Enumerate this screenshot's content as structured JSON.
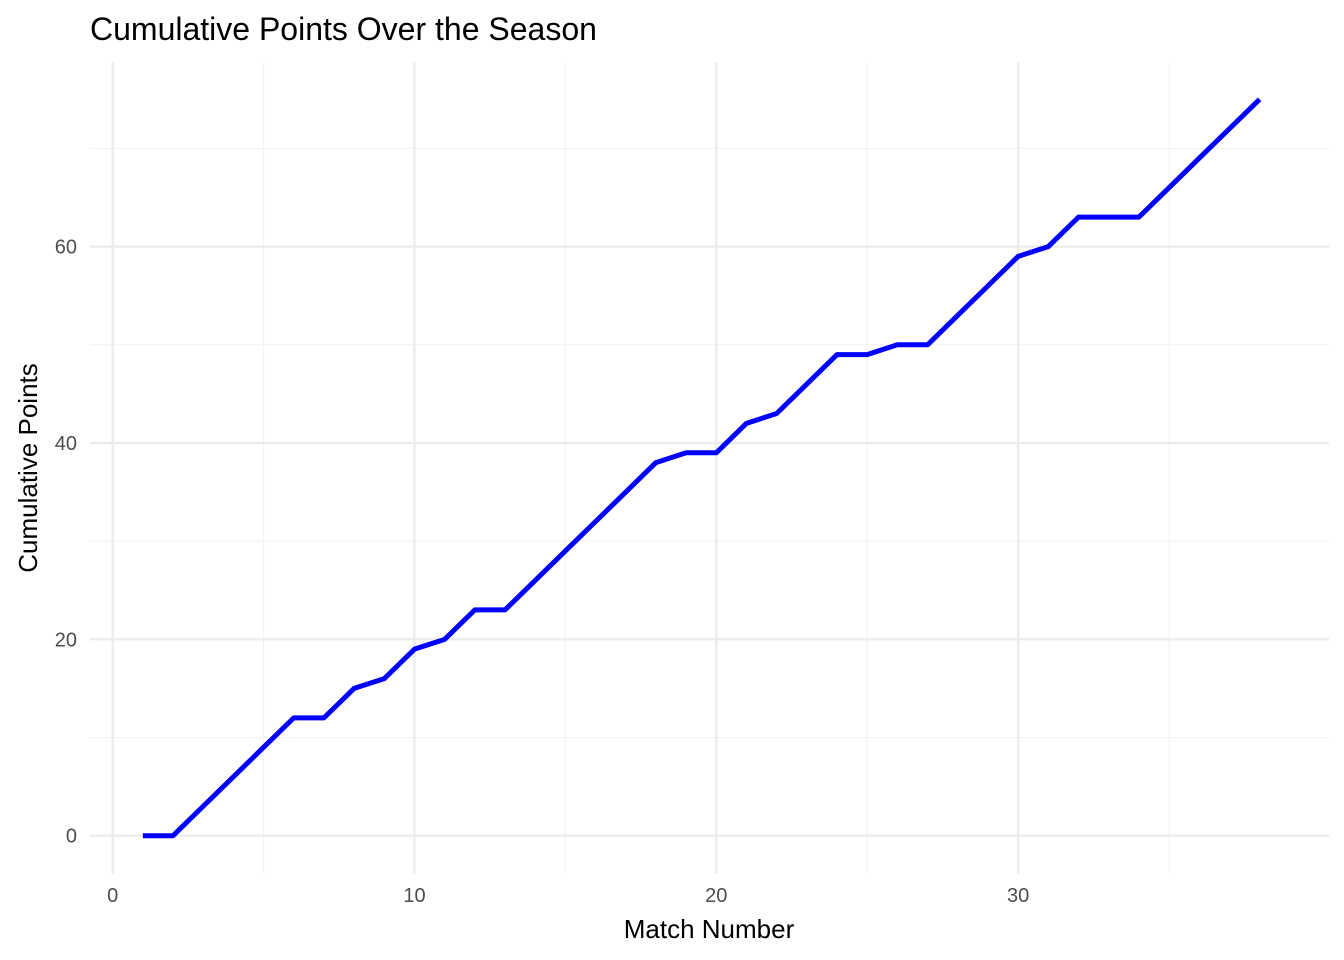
{
  "chart_data": {
    "type": "line",
    "title": "Cumulative Points Over the Season",
    "xlabel": "Match Number",
    "ylabel": "Cumulative Points",
    "xlim": [
      -0.75,
      40.3
    ],
    "ylim": [
      -3.9,
      78.8
    ],
    "x_major_ticks": [
      0,
      10,
      20,
      30
    ],
    "x_minor_ticks": [
      5,
      15,
      25,
      35
    ],
    "y_major_ticks": [
      0,
      20,
      40,
      60
    ],
    "y_minor_ticks": [
      10,
      30,
      50,
      70
    ],
    "grid": true,
    "legend": "none",
    "series": [
      {
        "color": "#0000ff",
        "x": [
          1,
          2,
          3,
          4,
          5,
          6,
          7,
          8,
          9,
          10,
          11,
          12,
          13,
          14,
          15,
          16,
          17,
          18,
          19,
          20,
          21,
          22,
          23,
          24,
          25,
          26,
          27,
          28,
          29,
          30,
          31,
          32,
          33,
          34,
          35,
          36,
          37,
          38
        ],
        "values": [
          0,
          0,
          3,
          6,
          9,
          12,
          12,
          15,
          16,
          19,
          20,
          23,
          23,
          26,
          29,
          32,
          35,
          38,
          39,
          39,
          42,
          43,
          46,
          49,
          49,
          50,
          50,
          53,
          56,
          59,
          60,
          63,
          63,
          63,
          66,
          69,
          72,
          75
        ]
      }
    ]
  }
}
